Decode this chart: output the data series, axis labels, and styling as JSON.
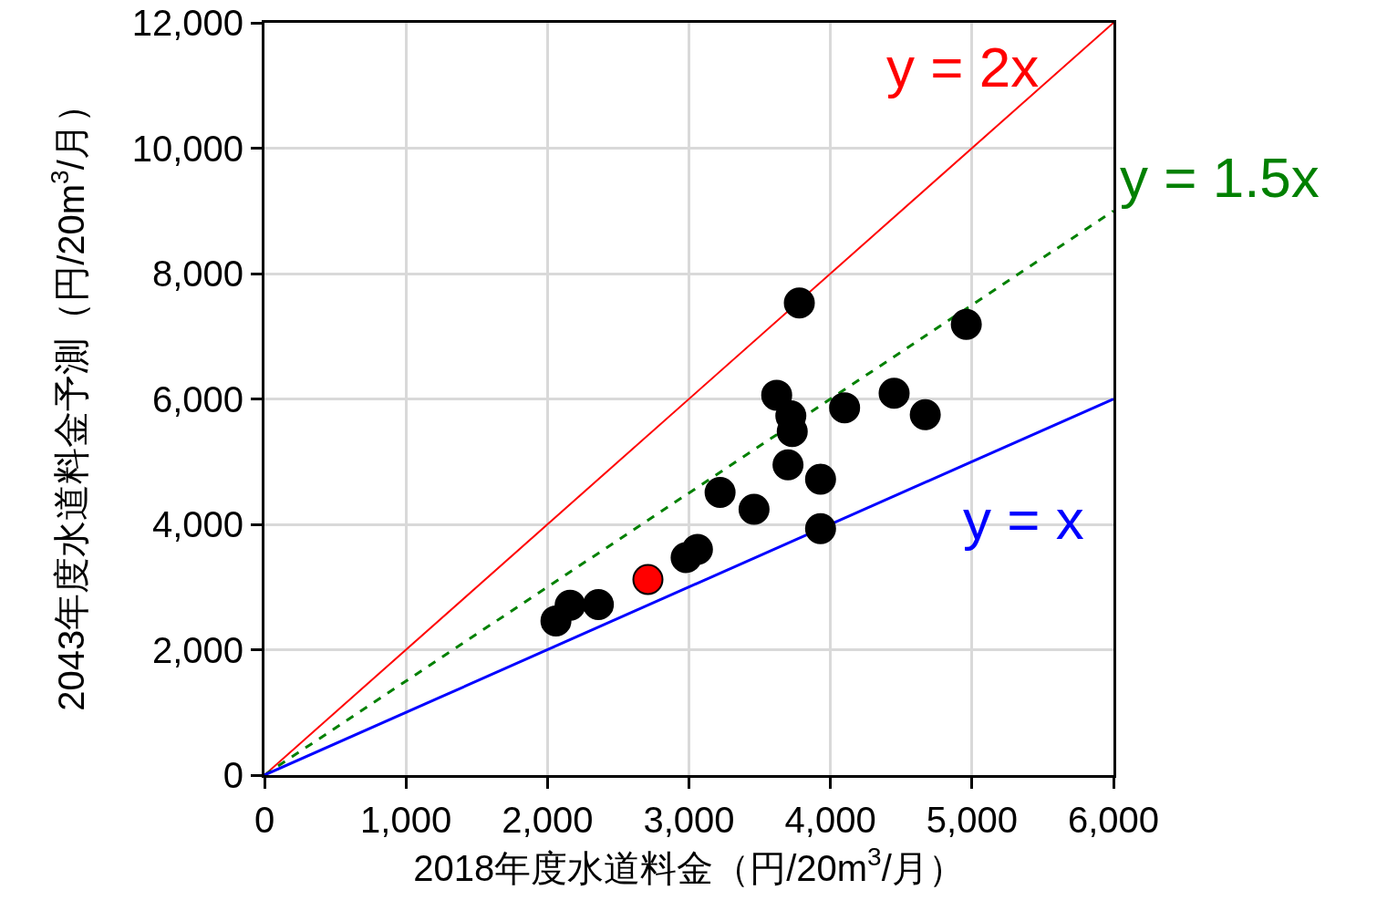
{
  "chart_data": {
    "type": "scatter",
    "xlabel": "2018年度水道料金（円/20m$^{3}$/月）",
    "ylabel": "2043年度水道料金予測（円/20m$^{3}$/月）",
    "xlim": [
      0,
      6000
    ],
    "xticks": [
      {
        "value": 0,
        "label": "0"
      },
      {
        "value": 1000,
        "label": "1,000"
      },
      {
        "value": 2000,
        "label": "2,000"
      },
      {
        "value": 3000,
        "label": "3,000"
      },
      {
        "value": 4000,
        "label": "4,000"
      },
      {
        "value": 5000,
        "label": "5,000"
      },
      {
        "value": 6000,
        "label": "6,000"
      }
    ],
    "ylim": [
      0,
      12000
    ],
    "yticks": [
      {
        "value": 0,
        "label": "0"
      },
      {
        "value": 2000,
        "label": "2,000"
      },
      {
        "value": 4000,
        "label": "4,000"
      },
      {
        "value": 6000,
        "label": "6,000"
      },
      {
        "value": 8000,
        "label": "8,000"
      },
      {
        "value": 10000,
        "label": "10,000"
      },
      {
        "value": 12000,
        "label": "12,000"
      }
    ],
    "grid": true,
    "series": [
      {
        "type": "line",
        "name": "y = 2x",
        "color": "#ff0000",
        "line_style": "solid",
        "marker": "none",
        "x": [
          0,
          6000
        ],
        "values": [
          0,
          12000
        ]
      },
      {
        "type": "line",
        "name": "y = 1.5x",
        "color": "#008000",
        "line_style": "dashed",
        "marker": "none",
        "x": [
          0,
          6000
        ],
        "values": [
          0,
          9000
        ]
      },
      {
        "type": "line",
        "name": "y = x",
        "color": "#0000ff",
        "line_style": "solid",
        "marker": "none",
        "x": [
          0,
          6000
        ],
        "values": [
          0,
          6000
        ]
      },
      {
        "marker": "circle",
        "x": [
          3780,
          4960,
          3620,
          3720,
          3730,
          4100,
          4450,
          4670,
          3700,
          3930,
          3220,
          3460,
          3930,
          3060,
          2980,
          2710,
          2360,
          2160,
          2060
        ],
        "values": [
          7530,
          7190,
          6060,
          5730,
          5480,
          5860,
          6090,
          5750,
          4950,
          4720,
          4510,
          4240,
          3930,
          3600,
          3470,
          3120,
          2720,
          2710,
          2460
        ],
        "colors": [
          "#000000",
          "#000000",
          "#000000",
          "#000000",
          "#000000",
          "#000000",
          "#000000",
          "#000000",
          "#000000",
          "#000000",
          "#000000",
          "#000000",
          "#000000",
          "#000000",
          "#000000",
          "#ff0000",
          "#000000",
          "#000000",
          "#000000"
        ]
      }
    ]
  }
}
